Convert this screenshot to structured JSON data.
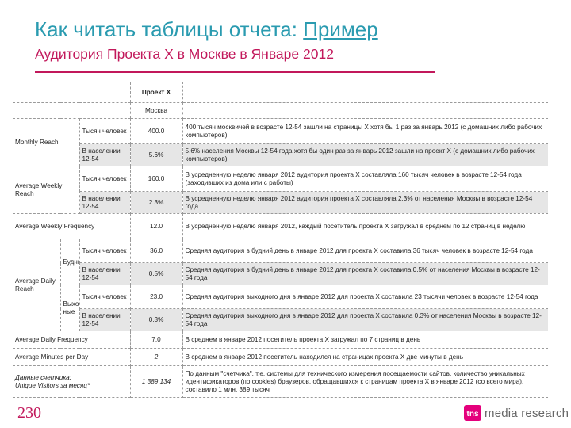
{
  "header": {
    "title": "Как читать таблицы отчета:",
    "title_link": "Пример",
    "subtitle": "Аудитория Проекта X в Москве в Январе 2012"
  },
  "table": {
    "col_header_1": "Проект X",
    "col_header_2": "Москва",
    "rows": [
      {
        "metric": "Monthly Reach",
        "unit": "Тысяч человек",
        "value": "400.0",
        "desc": "400 тысяч москвичей в возрасте 12-54 зашли на страницы X хотя бы 1 раз за январь 2012 (с домашних либо рабочих компьютеров)"
      },
      {
        "unit": "В населении 12-54",
        "value": "5.6%",
        "desc": "5.6% населения Москвы 12-54 года хотя бы один раз за январь 2012 зашли на проект X (с домашних либо рабочих компьютеров)"
      },
      {
        "metric": "Average Weekly Reach",
        "unit": "Тысяч человек",
        "value": "160.0",
        "desc": "В усредненную неделю января 2012 аудитория проекта X составляла 160 тысяч человек в возрасте 12-54 года (заходивших из дома или с работы)"
      },
      {
        "unit": "В населении 12-54",
        "value": "2.3%",
        "desc": "В усредненную неделю января 2012 аудитория проекта X составляла 2.3% от населения Москвы в возрасте 12-54 года"
      },
      {
        "metric": "Average Weekly Frequency",
        "value": "12.0",
        "desc": "В усредненную неделю января 2012, каждый посетитель проекта X загружал в среднем по 12 страниц  в неделю"
      },
      {
        "metric": "Average Daily Reach",
        "sub": "Будни",
        "unit": "Тысяч человек",
        "value": "36.0",
        "desc": "Средняя аудитория в будний день в январе 2012 для проекта X составила 36 тысяч человек в возрасте 12-54 года"
      },
      {
        "unit": "В населении 12-54",
        "value": "0.5%",
        "desc": "Средняя аудитория в будний день в январе 2012 для проекта X составила  0.5% от населения Москвы в возрасте 12-54 года"
      },
      {
        "sub": "Выход ные",
        "unit": "Тысяч человек",
        "value": "23.0",
        "desc": "Средняя аудитория выходного дня в январе 2012 для проекта X составила 23 тысячи человек в возрасте 12-54 года"
      },
      {
        "unit": "В населении 12-54",
        "value": "0.3%",
        "desc": "Средняя аудитория выходного дня в январе 2012 для проекта X составила  0.3% от населения Москвы в возрасте 12-54 года"
      },
      {
        "metric": "Average Daily Frequency",
        "value": "7.0",
        "desc": "В среднем в январе 2012 посетитель проекта X загружал по 7 страниц в день"
      },
      {
        "metric": "Average Minutes per Day",
        "value": "2",
        "desc": "В среднем в январе 2012 посетитель находился на страницах проекта X две минуты в день"
      },
      {
        "metric_line1": "Данные счетчика:",
        "metric_line2": "Unique Visitors за месяц*",
        "value": "1 389 134",
        "desc": "По данным \"счетчика\", т.е. системы для технического измерения посещаемости сайтов, количество уникальных идентификаторов (по cookies) браузеров, обращавшихся к страницам проекта X в январе 2012 (со всего мира), составило 1 млн. 389 тысяч"
      }
    ]
  },
  "footer": {
    "page_number": "230",
    "logo_text": "media research",
    "logo_mark": "tns"
  },
  "colors": {
    "title": "#2a9bb0",
    "accent": "#c2185b",
    "logo_mark": "#e4007c"
  }
}
